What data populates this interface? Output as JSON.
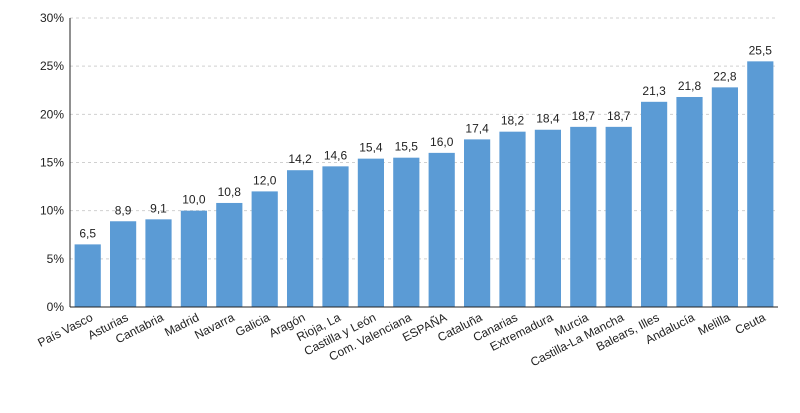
{
  "chart_data": {
    "type": "bar",
    "categories": [
      "País Vasco",
      "Asturias",
      "Cantabria",
      "Madrid",
      "Navarra",
      "Galicia",
      "Aragón",
      "Rioja, La",
      "Castilla y León",
      "Com. Valenciana",
      "ESPAÑA",
      "Cataluña",
      "Canarias",
      "Extremadura",
      "Murcia",
      "Castilla-La Mancha",
      "Balears, Illes",
      "Andalucía",
      "Melilla",
      "Ceuta"
    ],
    "values": [
      6.5,
      8.9,
      9.1,
      10.0,
      10.8,
      12.0,
      14.2,
      14.6,
      15.4,
      15.5,
      16.0,
      17.4,
      18.2,
      18.4,
      18.7,
      18.7,
      21.3,
      21.8,
      22.8,
      25.5
    ],
    "value_labels": [
      "6,5",
      "8,9",
      "9,1",
      "10,0",
      "10,8",
      "12,0",
      "14,2",
      "14,6",
      "15,4",
      "15,5",
      "16,0",
      "17,4",
      "18,2",
      "18,4",
      "18,7",
      "18,7",
      "21,3",
      "21,8",
      "22,8",
      "25,5"
    ],
    "ylim": [
      0,
      30
    ],
    "yticks": [
      0,
      5,
      10,
      15,
      20,
      25,
      30
    ],
    "ytick_labels": [
      "0%",
      "5%",
      "10%",
      "15%",
      "20%",
      "25%",
      "30%"
    ],
    "grid": true,
    "bar_color": "#5b9bd5",
    "title": "",
    "xlabel": "",
    "ylabel": ""
  }
}
